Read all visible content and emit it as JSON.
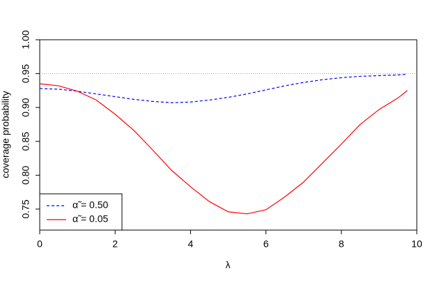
{
  "chart_data": {
    "type": "line",
    "xlabel": "λ",
    "ylabel": "coverage probability",
    "x": [
      0,
      0.5,
      1,
      1.5,
      2,
      2.5,
      3,
      3.5,
      4,
      4.5,
      5,
      5.5,
      6,
      6.5,
      7,
      7.5,
      8,
      8.5,
      9,
      9.5,
      9.75
    ],
    "series": [
      {
        "name": "α̃ = 0.50",
        "color": "#0000ff",
        "dash": "dashed",
        "values": [
          0.928,
          0.927,
          0.924,
          0.92,
          0.916,
          0.912,
          0.909,
          0.907,
          0.908,
          0.911,
          0.915,
          0.92,
          0.926,
          0.932,
          0.937,
          0.941,
          0.944,
          0.946,
          0.947,
          0.948,
          0.949
        ]
      },
      {
        "name": "α̃ = 0.05",
        "color": "#ff0000",
        "dash": "solid",
        "values": [
          0.935,
          0.932,
          0.924,
          0.911,
          0.89,
          0.866,
          0.837,
          0.807,
          0.783,
          0.761,
          0.746,
          0.743,
          0.749,
          0.768,
          0.79,
          0.818,
          0.846,
          0.875,
          0.897,
          0.914,
          0.925
        ]
      }
    ],
    "hline": 0.95,
    "xlim": [
      0,
      10
    ],
    "xticks": [
      0,
      2,
      4,
      6,
      8,
      10
    ],
    "ylim": [
      0.719,
      1.0
    ],
    "yticks": [
      0.75,
      {
        "value": 0.8,
        "label": "0.80"
      },
      0.85,
      {
        "value": 0.9,
        "label": "0.90"
      },
      0.95,
      {
        "value": 1.0,
        "label": "1.00"
      }
    ],
    "legend": "bottom-left"
  }
}
